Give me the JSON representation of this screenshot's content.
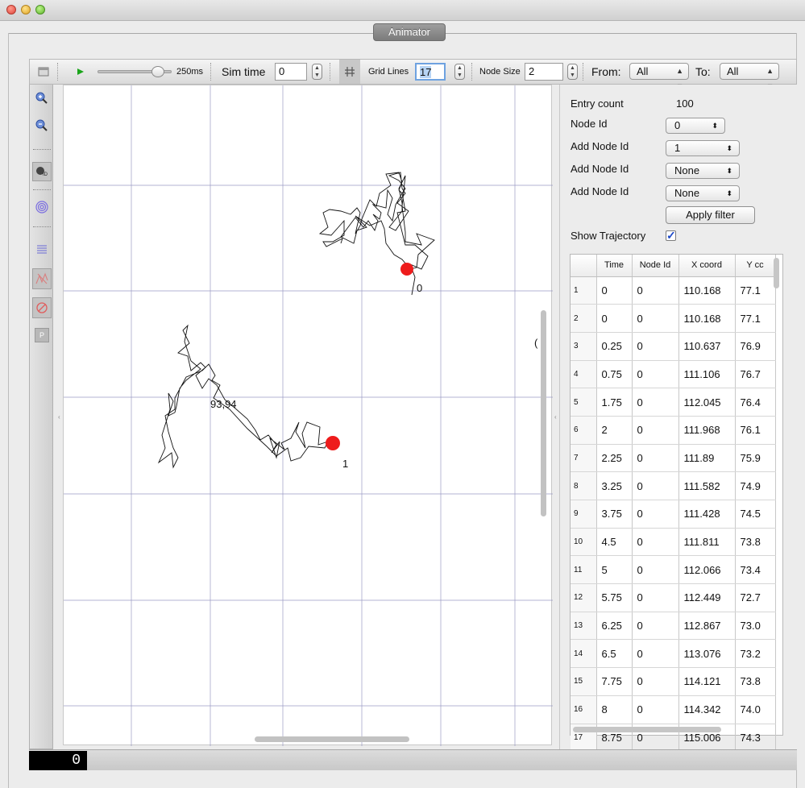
{
  "window": {
    "tab_label": "Animator"
  },
  "toolbar": {
    "speed_label": "250ms",
    "speed_fraction": 0.82,
    "sim_time_label": "Sim time",
    "sim_time_value": "0",
    "grid_lines_label": "Grid Lines",
    "grid_lines_value": "17",
    "node_size_label": "Node Size",
    "node_size_value": "2",
    "from_label": "From:",
    "from_value": "All",
    "to_label": "To:",
    "to_value": "All"
  },
  "canvas": {
    "node_labels": [
      "0",
      "1"
    ],
    "annotation": "93,94",
    "node_color": "#ee1c1c"
  },
  "panel": {
    "entry_count_label": "Entry count",
    "entry_count_value": "100",
    "node_id_label": "Node Id",
    "node_id_value": "0",
    "add_node_1_label": "Add Node Id",
    "add_node_1_value": "1",
    "add_node_2_label": "Add Node Id",
    "add_node_2_value": "None",
    "add_node_3_label": "Add Node Id",
    "add_node_3_value": "None",
    "apply_filter_label": "Apply filter",
    "show_trajectory_label": "Show Trajectory",
    "show_trajectory_checked": true
  },
  "table": {
    "headers": [
      "",
      "Time",
      "Node Id",
      "X coord",
      "Y cc"
    ],
    "rows": [
      [
        "1",
        "0",
        "0",
        "110.168",
        "77.1"
      ],
      [
        "2",
        "0",
        "0",
        "110.168",
        "77.1"
      ],
      [
        "3",
        "0.25",
        "0",
        "110.637",
        "76.9"
      ],
      [
        "4",
        "0.75",
        "0",
        "111.106",
        "76.7"
      ],
      [
        "5",
        "1.75",
        "0",
        "112.045",
        "76.4"
      ],
      [
        "6",
        "2",
        "0",
        "111.968",
        "76.1"
      ],
      [
        "7",
        "2.25",
        "0",
        "111.89",
        "75.9"
      ],
      [
        "8",
        "3.25",
        "0",
        "111.582",
        "74.9"
      ],
      [
        "9",
        "3.75",
        "0",
        "111.428",
        "74.5"
      ],
      [
        "10",
        "4.5",
        "0",
        "111.811",
        "73.8"
      ],
      [
        "11",
        "5",
        "0",
        "112.066",
        "73.4"
      ],
      [
        "12",
        "5.75",
        "0",
        "112.449",
        "72.7"
      ],
      [
        "13",
        "6.25",
        "0",
        "112.867",
        "73.0"
      ],
      [
        "14",
        "6.5",
        "0",
        "113.076",
        "73.2"
      ],
      [
        "15",
        "7.75",
        "0",
        "114.121",
        "73.8"
      ],
      [
        "16",
        "8",
        "0",
        "114.342",
        "74.0"
      ],
      [
        "17",
        "8.75",
        "0",
        "115.006",
        "74.3"
      ]
    ]
  },
  "statusbar": {
    "console_text": "0"
  }
}
